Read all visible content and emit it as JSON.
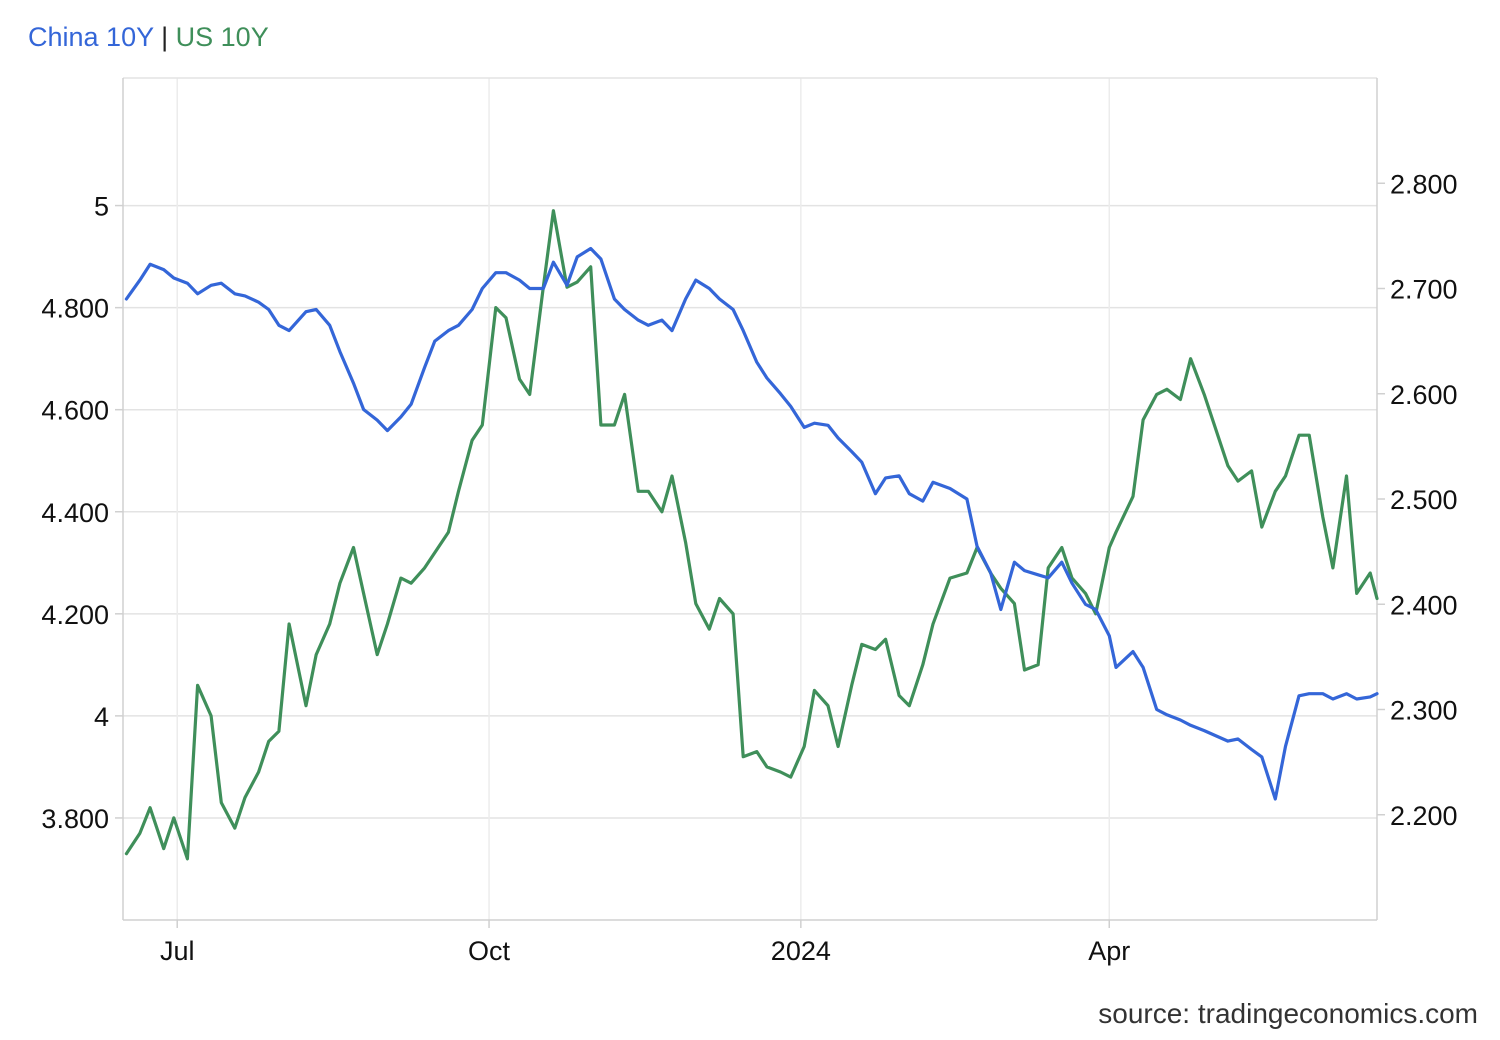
{
  "legend": {
    "china_label": "China 10Y",
    "separator": "|",
    "us_label": "US 10Y"
  },
  "source": "source: tradingeconomics.com",
  "colors": {
    "china": "#3466d8",
    "us": "#3f8f5a",
    "grid": "#e3e3e3"
  },
  "chart_data": {
    "type": "line",
    "title": "",
    "x_ticks": [
      {
        "label": "Jul",
        "date": "2023-07-01"
      },
      {
        "label": "Oct",
        "date": "2023-10-01"
      },
      {
        "label": "2024",
        "date": "2024-01-01"
      },
      {
        "label": "Apr",
        "date": "2024-04-01"
      }
    ],
    "x_range": [
      "2023-06-15",
      "2024-06-19"
    ],
    "left_axis": {
      "series": "US 10Y",
      "ylim": [
        3.6,
        5.25
      ],
      "ticks": [
        5,
        4.8,
        4.6,
        4.4,
        4.2,
        4,
        3.8
      ],
      "tick_labels": [
        "5",
        "4.800",
        "4.600",
        "4.400",
        "4.200",
        "4",
        "3.800"
      ]
    },
    "right_axis": {
      "series": "China 10Y",
      "ylim": [
        2.1,
        2.9
      ],
      "ticks": [
        2.8,
        2.7,
        2.6,
        2.5,
        2.4,
        2.3,
        2.2
      ],
      "tick_labels": [
        "2.800",
        "2.700",
        "2.600",
        "2.500",
        "2.400",
        "2.300",
        "2.200"
      ]
    },
    "series": [
      {
        "name": "China 10Y",
        "axis": "right",
        "points": [
          [
            "2023-06-16",
            2.69
          ],
          [
            "2023-06-20",
            2.708
          ],
          [
            "2023-06-23",
            2.723
          ],
          [
            "2023-06-27",
            2.718
          ],
          [
            "2023-06-30",
            2.71
          ],
          [
            "2023-07-04",
            2.705
          ],
          [
            "2023-07-07",
            2.695
          ],
          [
            "2023-07-11",
            2.703
          ],
          [
            "2023-07-14",
            2.705
          ],
          [
            "2023-07-18",
            2.695
          ],
          [
            "2023-07-21",
            2.693
          ],
          [
            "2023-07-25",
            2.687
          ],
          [
            "2023-07-28",
            2.68
          ],
          [
            "2023-07-31",
            2.665
          ],
          [
            "2023-08-03",
            2.66
          ],
          [
            "2023-08-08",
            2.678
          ],
          [
            "2023-08-11",
            2.68
          ],
          [
            "2023-08-15",
            2.665
          ],
          [
            "2023-08-18",
            2.64
          ],
          [
            "2023-08-22",
            2.61
          ],
          [
            "2023-08-25",
            2.585
          ],
          [
            "2023-08-29",
            2.575
          ],
          [
            "2023-09-01",
            2.565
          ],
          [
            "2023-09-05",
            2.578
          ],
          [
            "2023-09-08",
            2.59
          ],
          [
            "2023-09-12",
            2.625
          ],
          [
            "2023-09-15",
            2.65
          ],
          [
            "2023-09-19",
            2.66
          ],
          [
            "2023-09-22",
            2.665
          ],
          [
            "2023-09-26",
            2.68
          ],
          [
            "2023-09-29",
            2.7
          ],
          [
            "2023-10-03",
            2.715
          ],
          [
            "2023-10-06",
            2.715
          ],
          [
            "2023-10-10",
            2.708
          ],
          [
            "2023-10-13",
            2.7
          ],
          [
            "2023-10-17",
            2.7
          ],
          [
            "2023-10-20",
            2.725
          ],
          [
            "2023-10-24",
            2.703
          ],
          [
            "2023-10-27",
            2.73
          ],
          [
            "2023-10-31",
            2.738
          ],
          [
            "2023-11-03",
            2.728
          ],
          [
            "2023-11-07",
            2.69
          ],
          [
            "2023-11-10",
            2.68
          ],
          [
            "2023-11-14",
            2.67
          ],
          [
            "2023-11-17",
            2.665
          ],
          [
            "2023-11-21",
            2.67
          ],
          [
            "2023-11-24",
            2.66
          ],
          [
            "2023-11-28",
            2.69
          ],
          [
            "2023-12-01",
            2.708
          ],
          [
            "2023-12-05",
            2.7
          ],
          [
            "2023-12-08",
            2.69
          ],
          [
            "2023-12-12",
            2.68
          ],
          [
            "2023-12-15",
            2.66
          ],
          [
            "2023-12-19",
            2.63
          ],
          [
            "2023-12-22",
            2.615
          ],
          [
            "2023-12-26",
            2.6
          ],
          [
            "2023-12-29",
            2.588
          ],
          [
            "2024-01-02",
            2.568
          ],
          [
            "2024-01-05",
            2.572
          ],
          [
            "2024-01-09",
            2.57
          ],
          [
            "2024-01-12",
            2.558
          ],
          [
            "2024-01-16",
            2.545
          ],
          [
            "2024-01-19",
            2.535
          ],
          [
            "2024-01-23",
            2.505
          ],
          [
            "2024-01-26",
            2.52
          ],
          [
            "2024-01-30",
            2.522
          ],
          [
            "2024-02-02",
            2.505
          ],
          [
            "2024-02-06",
            2.498
          ],
          [
            "2024-02-09",
            2.516
          ],
          [
            "2024-02-14",
            2.51
          ],
          [
            "2024-02-19",
            2.5
          ],
          [
            "2024-02-22",
            2.455
          ],
          [
            "2024-02-26",
            2.43
          ],
          [
            "2024-02-29",
            2.395
          ],
          [
            "2024-03-04",
            2.44
          ],
          [
            "2024-03-07",
            2.432
          ],
          [
            "2024-03-11",
            2.428
          ],
          [
            "2024-03-14",
            2.425
          ],
          [
            "2024-03-18",
            2.44
          ],
          [
            "2024-03-21",
            2.42
          ],
          [
            "2024-03-25",
            2.4
          ],
          [
            "2024-03-28",
            2.395
          ],
          [
            "2024-04-01",
            2.37
          ],
          [
            "2024-04-03",
            2.34
          ],
          [
            "2024-04-08",
            2.355
          ],
          [
            "2024-04-11",
            2.34
          ],
          [
            "2024-04-15",
            2.3
          ],
          [
            "2024-04-18",
            2.295
          ],
          [
            "2024-04-22",
            2.29
          ],
          [
            "2024-04-25",
            2.285
          ],
          [
            "2024-04-29",
            2.28
          ],
          [
            "2024-05-06",
            2.27
          ],
          [
            "2024-05-09",
            2.272
          ],
          [
            "2024-05-13",
            2.262
          ],
          [
            "2024-05-16",
            2.255
          ],
          [
            "2024-05-20",
            2.215
          ],
          [
            "2024-05-23",
            2.265
          ],
          [
            "2024-05-27",
            2.313
          ],
          [
            "2024-05-30",
            2.315
          ],
          [
            "2024-06-03",
            2.315
          ],
          [
            "2024-06-06",
            2.31
          ],
          [
            "2024-06-10",
            2.315
          ],
          [
            "2024-06-13",
            2.31
          ],
          [
            "2024-06-17",
            2.312
          ],
          [
            "2024-06-19",
            2.315
          ]
        ]
      },
      {
        "name": "US 10Y",
        "axis": "left",
        "points": [
          [
            "2023-06-16",
            3.73
          ],
          [
            "2023-06-20",
            3.77
          ],
          [
            "2023-06-23",
            3.82
          ],
          [
            "2023-06-27",
            3.74
          ],
          [
            "2023-06-30",
            3.8
          ],
          [
            "2023-07-04",
            3.72
          ],
          [
            "2023-07-07",
            4.06
          ],
          [
            "2023-07-11",
            4.0
          ],
          [
            "2023-07-14",
            3.83
          ],
          [
            "2023-07-18",
            3.78
          ],
          [
            "2023-07-21",
            3.84
          ],
          [
            "2023-07-25",
            3.89
          ],
          [
            "2023-07-28",
            3.95
          ],
          [
            "2023-07-31",
            3.97
          ],
          [
            "2023-08-03",
            4.18
          ],
          [
            "2023-08-08",
            4.02
          ],
          [
            "2023-08-11",
            4.12
          ],
          [
            "2023-08-15",
            4.18
          ],
          [
            "2023-08-18",
            4.26
          ],
          [
            "2023-08-22",
            4.33
          ],
          [
            "2023-08-25",
            4.24
          ],
          [
            "2023-08-29",
            4.12
          ],
          [
            "2023-09-01",
            4.18
          ],
          [
            "2023-09-05",
            4.27
          ],
          [
            "2023-09-08",
            4.26
          ],
          [
            "2023-09-12",
            4.29
          ],
          [
            "2023-09-15",
            4.32
          ],
          [
            "2023-09-19",
            4.36
          ],
          [
            "2023-09-22",
            4.44
          ],
          [
            "2023-09-26",
            4.54
          ],
          [
            "2023-09-29",
            4.57
          ],
          [
            "2023-10-03",
            4.8
          ],
          [
            "2023-10-06",
            4.78
          ],
          [
            "2023-10-10",
            4.66
          ],
          [
            "2023-10-13",
            4.63
          ],
          [
            "2023-10-17",
            4.84
          ],
          [
            "2023-10-20",
            4.99
          ],
          [
            "2023-10-24",
            4.84
          ],
          [
            "2023-10-27",
            4.85
          ],
          [
            "2023-10-31",
            4.88
          ],
          [
            "2023-11-03",
            4.57
          ],
          [
            "2023-11-07",
            4.57
          ],
          [
            "2023-11-10",
            4.63
          ],
          [
            "2023-11-14",
            4.44
          ],
          [
            "2023-11-17",
            4.44
          ],
          [
            "2023-11-21",
            4.4
          ],
          [
            "2023-11-24",
            4.47
          ],
          [
            "2023-11-28",
            4.34
          ],
          [
            "2023-12-01",
            4.22
          ],
          [
            "2023-12-05",
            4.17
          ],
          [
            "2023-12-08",
            4.23
          ],
          [
            "2023-12-12",
            4.2
          ],
          [
            "2023-12-15",
            3.92
          ],
          [
            "2023-12-19",
            3.93
          ],
          [
            "2023-12-22",
            3.9
          ],
          [
            "2023-12-26",
            3.89
          ],
          [
            "2023-12-29",
            3.88
          ],
          [
            "2024-01-02",
            3.94
          ],
          [
            "2024-01-05",
            4.05
          ],
          [
            "2024-01-09",
            4.02
          ],
          [
            "2024-01-12",
            3.94
          ],
          [
            "2024-01-16",
            4.06
          ],
          [
            "2024-01-19",
            4.14
          ],
          [
            "2024-01-23",
            4.13
          ],
          [
            "2024-01-26",
            4.15
          ],
          [
            "2024-01-30",
            4.04
          ],
          [
            "2024-02-02",
            4.02
          ],
          [
            "2024-02-06",
            4.1
          ],
          [
            "2024-02-09",
            4.18
          ],
          [
            "2024-02-14",
            4.27
          ],
          [
            "2024-02-19",
            4.28
          ],
          [
            "2024-02-22",
            4.33
          ],
          [
            "2024-02-26",
            4.28
          ],
          [
            "2024-02-29",
            4.25
          ],
          [
            "2024-03-04",
            4.22
          ],
          [
            "2024-03-07",
            4.09
          ],
          [
            "2024-03-11",
            4.1
          ],
          [
            "2024-03-14",
            4.29
          ],
          [
            "2024-03-18",
            4.33
          ],
          [
            "2024-03-21",
            4.27
          ],
          [
            "2024-03-25",
            4.24
          ],
          [
            "2024-03-28",
            4.2
          ],
          [
            "2024-04-01",
            4.33
          ],
          [
            "2024-04-03",
            4.36
          ],
          [
            "2024-04-08",
            4.43
          ],
          [
            "2024-04-11",
            4.58
          ],
          [
            "2024-04-15",
            4.63
          ],
          [
            "2024-04-18",
            4.64
          ],
          [
            "2024-04-22",
            4.62
          ],
          [
            "2024-04-25",
            4.7
          ],
          [
            "2024-04-29",
            4.63
          ],
          [
            "2024-05-06",
            4.49
          ],
          [
            "2024-05-09",
            4.46
          ],
          [
            "2024-05-13",
            4.48
          ],
          [
            "2024-05-16",
            4.37
          ],
          [
            "2024-05-20",
            4.44
          ],
          [
            "2024-05-23",
            4.47
          ],
          [
            "2024-05-27",
            4.55
          ],
          [
            "2024-05-30",
            4.55
          ],
          [
            "2024-06-03",
            4.39
          ],
          [
            "2024-06-06",
            4.29
          ],
          [
            "2024-06-10",
            4.47
          ],
          [
            "2024-06-13",
            4.24
          ],
          [
            "2024-06-17",
            4.28
          ],
          [
            "2024-06-19",
            4.23
          ]
        ]
      }
    ]
  }
}
